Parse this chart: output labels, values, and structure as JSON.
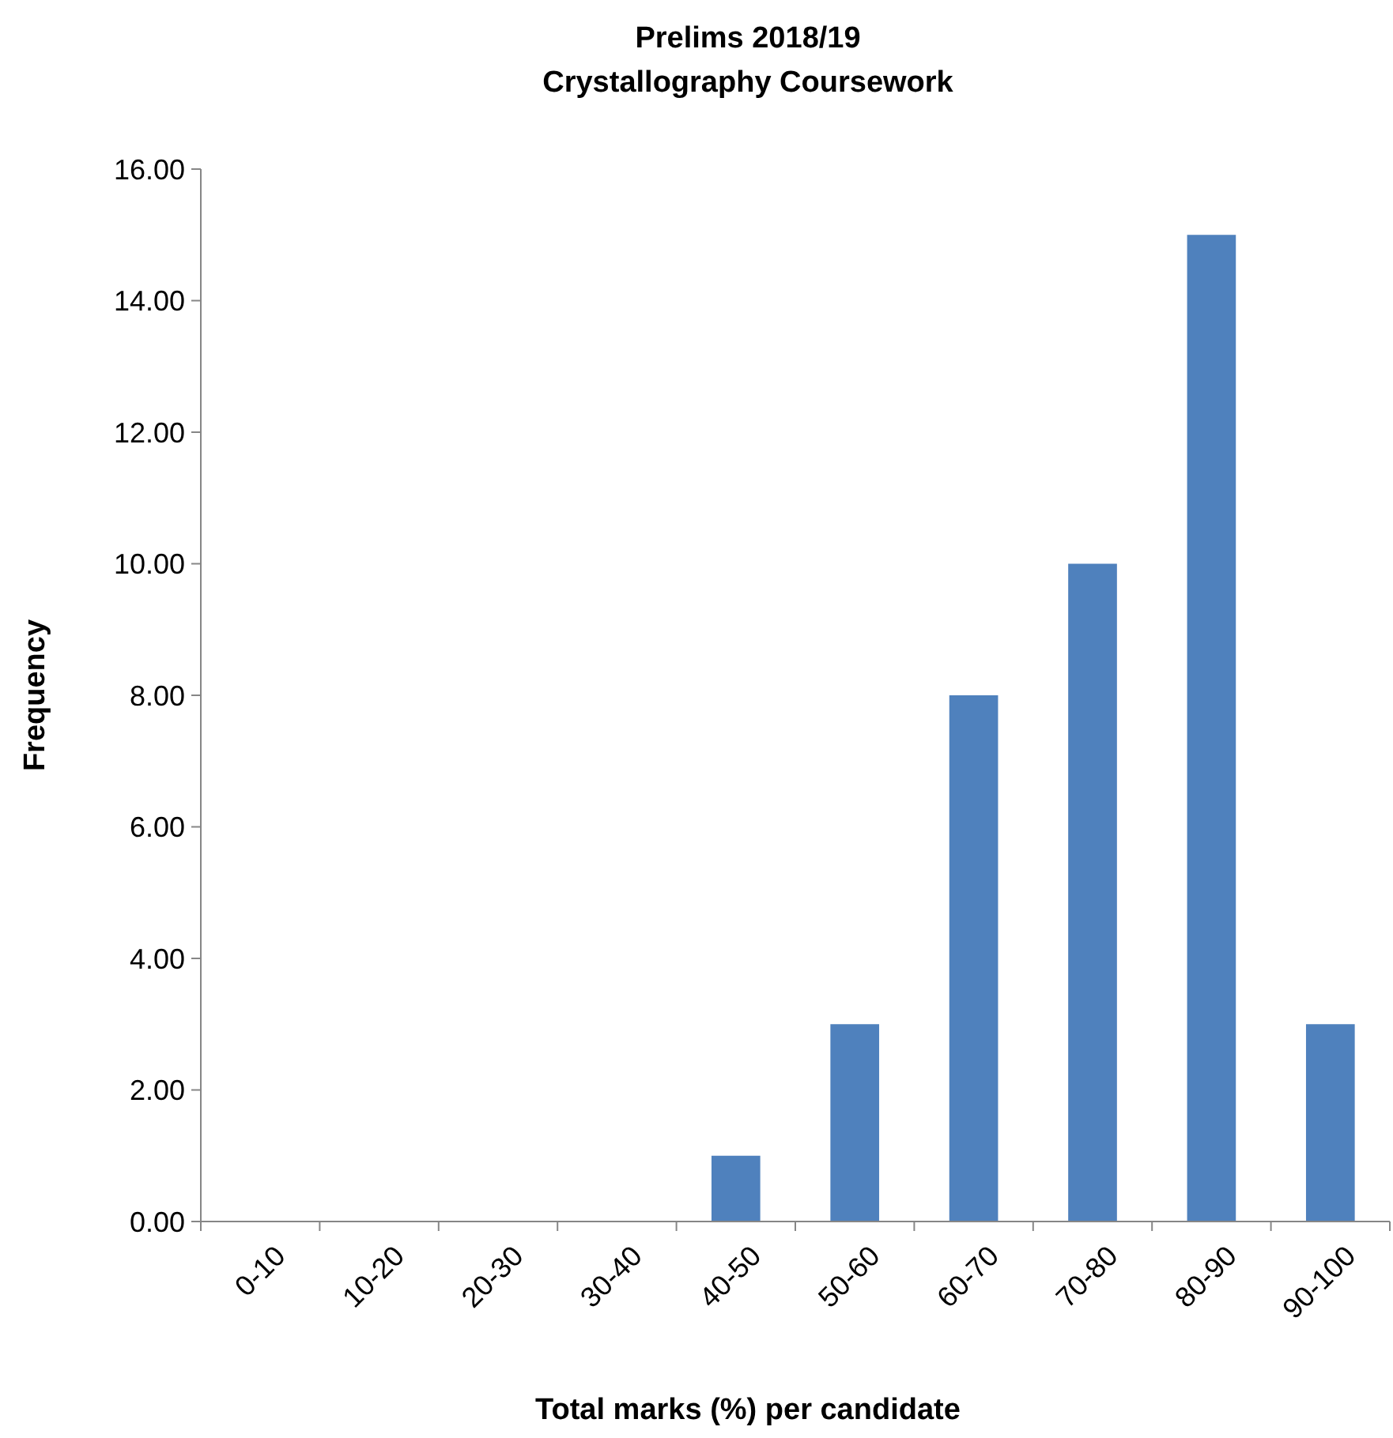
{
  "chart_data": {
    "type": "bar",
    "title": "Prelims 2018/19\nCrystallography Coursework",
    "xlabel": "Total marks (%) per candidate",
    "ylabel": "Frequency",
    "categories": [
      "0-10",
      "10-20",
      "20-30",
      "30-40",
      "40-50",
      "50-60",
      "60-70",
      "70-80",
      "80-90",
      "90-100"
    ],
    "values": [
      0,
      0,
      0,
      0,
      1,
      3,
      8,
      10,
      15,
      3
    ],
    "color": "#4f81bd",
    "ylim": [
      0,
      16
    ],
    "yticks": [
      {
        "value": 0,
        "label": "0.00"
      },
      {
        "value": 2,
        "label": "2.00"
      },
      {
        "value": 4,
        "label": "4.00"
      },
      {
        "value": 6,
        "label": "6.00"
      },
      {
        "value": 8,
        "label": "8.00"
      },
      {
        "value": 10,
        "label": "10.00"
      },
      {
        "value": 12,
        "label": "12.00"
      },
      {
        "value": 14,
        "label": "14.00"
      },
      {
        "value": 16,
        "label": "16.00"
      }
    ],
    "grid": false
  }
}
